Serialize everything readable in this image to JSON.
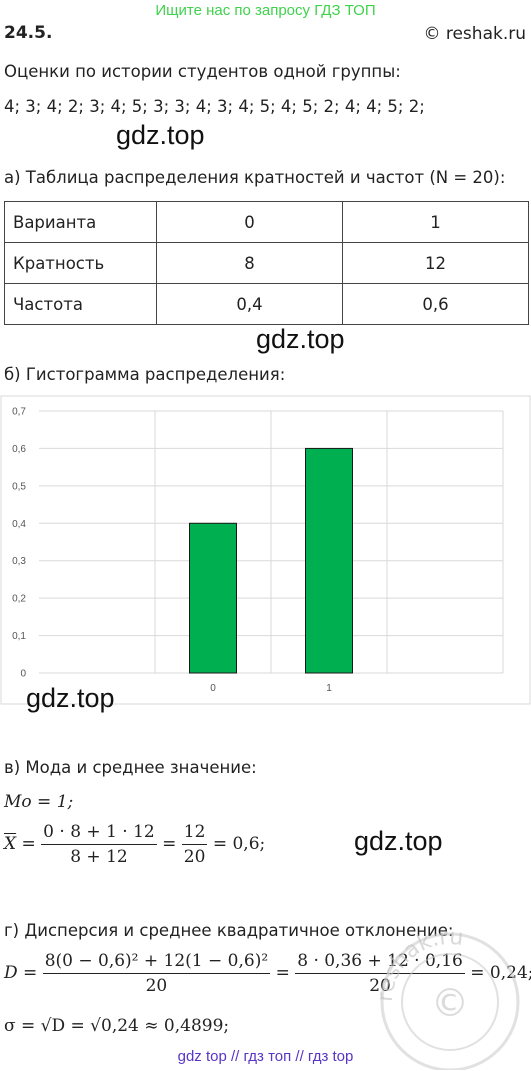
{
  "header": {
    "banner": "Ищите нас по запросу ГДЗ ТОП",
    "task_number": "24.5.",
    "site": "© reshak.ru"
  },
  "intro": {
    "line1": "Оценки по истории студентов одной группы:",
    "line2": "4;  3;  4;  2;  3;  4;  5;  3;  3;  4;  3;  4;  5;  4;  5;  2;  4;  4;  5;  2;"
  },
  "watermarks": {
    "w1": "gdz.top",
    "w2": "gdz.top",
    "w3": "gdz.top",
    "w4": "gdz.top"
  },
  "part_a": {
    "heading": "а) Таблица распределения кратностей и частот (N = 20):",
    "table": [
      [
        "Варианта",
        "0",
        "1"
      ],
      [
        "Кратность",
        "8",
        "12"
      ],
      [
        "Частота",
        "0,4",
        "0,6"
      ]
    ]
  },
  "part_b": {
    "heading": "б) Гистограмма распределения:"
  },
  "chart_data": {
    "type": "bar",
    "categories": [
      "",
      "0",
      "1",
      ""
    ],
    "values": [
      null,
      0.4,
      0.6,
      null
    ],
    "y_ticks": [
      "0",
      "0,1",
      "0,2",
      "0,3",
      "0,4",
      "0,5",
      "0,6",
      "0,7"
    ],
    "ylim": [
      0,
      0.7
    ],
    "grid": true,
    "bar_color": "#00b050",
    "title": "",
    "xlabel": "",
    "ylabel": ""
  },
  "part_v": {
    "heading": "в) Мода и среднее значение:",
    "mode": "Mo = 1;",
    "mean_lhs": "X",
    "mean_eq": "=",
    "mean_num": "0 · 8 + 1 · 12",
    "mean_den": "8 + 12",
    "mean_eq2": "=",
    "mean_num2": "12",
    "mean_den2": "20",
    "mean_result": "= 0,6;"
  },
  "part_g": {
    "heading": "г) Дисперсия и среднее квадратичное отклонение:",
    "d_lhs": "D =",
    "d_num1": "8(0 − 0,6)² + 12(1 − 0,6)²",
    "d_den1": "20",
    "d_eq": "=",
    "d_num2": "8 · 0,36 + 12 · 0,16",
    "d_den2": "20",
    "d_result": "= 0,24;",
    "sigma": "σ = √D = √0,24 ≈ 0,4899;"
  },
  "seal": {
    "text": "reshak.ru"
  },
  "footer": "gdz top  //  гдз топ  //  гдз top"
}
